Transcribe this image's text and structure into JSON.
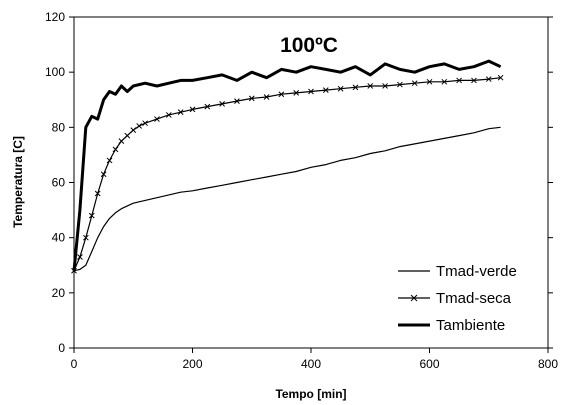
{
  "chart_data": {
    "type": "line",
    "title": "100ºC",
    "xlabel": "Tempo [min]",
    "ylabel": "Temperatura [C]",
    "xlim": [
      0,
      800
    ],
    "ylim": [
      0,
      120
    ],
    "xticks": [
      "0",
      "200",
      "400",
      "600",
      "800"
    ],
    "yticks": [
      "0",
      "20",
      "40",
      "60",
      "80",
      "100",
      "120"
    ],
    "grid": false,
    "legend_position": "bottom-right",
    "series": [
      {
        "name": "Tmad-verde",
        "style": "thin",
        "color": "#000000",
        "x": [
          0,
          10,
          20,
          30,
          40,
          50,
          60,
          70,
          80,
          90,
          100,
          120,
          140,
          160,
          180,
          200,
          225,
          250,
          275,
          300,
          325,
          350,
          375,
          400,
          425,
          450,
          475,
          500,
          525,
          550,
          575,
          600,
          625,
          650,
          675,
          700,
          720
        ],
        "y": [
          28,
          28.5,
          30,
          35,
          40,
          44,
          47,
          49,
          50.5,
          51.5,
          52.5,
          53.5,
          54.5,
          55.5,
          56.5,
          57,
          58,
          59,
          60,
          61,
          62,
          63,
          64,
          65.5,
          66.5,
          68,
          69,
          70.5,
          71.5,
          73,
          74,
          75,
          76,
          77,
          78,
          79.5,
          80
        ]
      },
      {
        "name": "Tmad-seca",
        "style": "cross-markers",
        "color": "#000000",
        "x": [
          0,
          10,
          20,
          30,
          40,
          50,
          60,
          70,
          80,
          90,
          100,
          110,
          120,
          140,
          160,
          180,
          200,
          225,
          250,
          275,
          300,
          325,
          350,
          375,
          400,
          425,
          450,
          475,
          500,
          525,
          550,
          575,
          600,
          625,
          650,
          675,
          700,
          720
        ],
        "y": [
          28,
          33,
          40,
          48,
          56,
          63,
          68,
          72,
          75,
          77,
          79,
          80.5,
          81.5,
          83,
          84.5,
          85.5,
          86.5,
          87.5,
          88.5,
          89.5,
          90.5,
          91,
          92,
          92.5,
          93,
          93.5,
          94,
          94.5,
          95,
          95,
          95.5,
          96,
          96.5,
          96.5,
          97,
          97,
          97.5,
          98
        ]
      },
      {
        "name": "Tambiente",
        "style": "thick",
        "color": "#000000",
        "x": [
          0,
          10,
          20,
          30,
          40,
          50,
          60,
          70,
          80,
          90,
          100,
          120,
          140,
          160,
          180,
          200,
          225,
          250,
          275,
          300,
          325,
          350,
          375,
          400,
          425,
          450,
          475,
          500,
          525,
          550,
          575,
          600,
          625,
          650,
          675,
          700,
          720
        ],
        "y": [
          28,
          50,
          80,
          84,
          83,
          90,
          93,
          92,
          95,
          93,
          95,
          96,
          95,
          96,
          97,
          97,
          98,
          99,
          97,
          100,
          98,
          101,
          100,
          102,
          101,
          100,
          102,
          99,
          103,
          101,
          100,
          102,
          103,
          101,
          102,
          104,
          102
        ]
      }
    ]
  }
}
